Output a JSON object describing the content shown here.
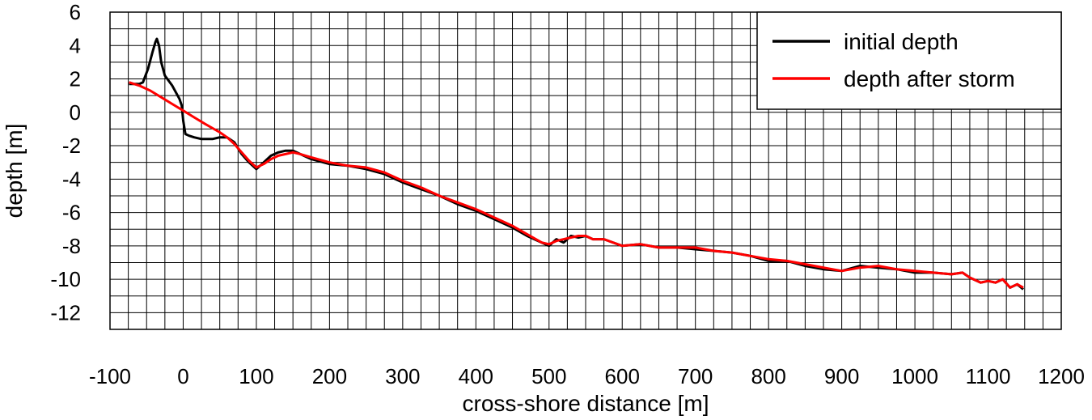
{
  "chart_data": {
    "type": "line",
    "title": "",
    "xlabel": "cross-shore distance [m]",
    "ylabel": "depth [m]",
    "xlim": [
      -100,
      1200
    ],
    "ylim": [
      -13,
      6
    ],
    "x_ticks": [
      -100,
      0,
      100,
      200,
      300,
      400,
      500,
      600,
      700,
      800,
      900,
      1000,
      1100,
      1200
    ],
    "x_tick_labels": [
      "-100",
      "0",
      "100",
      "200",
      "300",
      "400",
      "500",
      "600",
      "700",
      "800",
      "900",
      "1000",
      "1100",
      "1200"
    ],
    "y_ticks": [
      -12,
      -10,
      -8,
      -6,
      -4,
      -2,
      0,
      2,
      4,
      6
    ],
    "y_tick_labels": [
      "-12",
      "-10",
      "-8",
      "-6",
      "-4",
      "-2",
      "0",
      "2",
      "4",
      "6"
    ],
    "grid": true,
    "grid_x_step": 25,
    "grid_y_step": 1,
    "legend_position": "top-right",
    "series": [
      {
        "name": "initial depth",
        "color": "#000000",
        "x": [
          -74,
          -60,
          -55,
          -48,
          -42,
          -38,
          -36,
          -33,
          -30,
          -25,
          -15,
          -5,
          -2,
          0,
          3,
          8,
          15,
          25,
          40,
          50,
          60,
          70,
          80,
          90,
          100,
          110,
          120,
          130,
          140,
          150,
          160,
          175,
          200,
          225,
          250,
          275,
          300,
          325,
          350,
          375,
          400,
          425,
          450,
          470,
          490,
          500,
          510,
          520,
          530,
          540,
          550,
          560,
          575,
          600,
          625,
          650,
          675,
          700,
          725,
          750,
          775,
          800,
          825,
          850,
          875,
          900,
          925,
          950,
          975,
          1000,
          1025,
          1050,
          1065,
          1075,
          1090,
          1100,
          1110,
          1120,
          1130,
          1140,
          1148
        ],
        "y": [
          1.7,
          1.7,
          1.8,
          2.6,
          3.6,
          4.2,
          4.4,
          4.0,
          3.0,
          2.2,
          1.6,
          0.8,
          0.4,
          -0.5,
          -1.3,
          -1.4,
          -1.5,
          -1.6,
          -1.6,
          -1.5,
          -1.5,
          -1.8,
          -2.5,
          -3.0,
          -3.4,
          -3.0,
          -2.6,
          -2.4,
          -2.3,
          -2.3,
          -2.5,
          -2.8,
          -3.1,
          -3.2,
          -3.4,
          -3.7,
          -4.2,
          -4.6,
          -5.0,
          -5.5,
          -5.9,
          -6.4,
          -6.9,
          -7.4,
          -7.8,
          -8.0,
          -7.6,
          -7.8,
          -7.4,
          -7.5,
          -7.4,
          -7.6,
          -7.6,
          -8.0,
          -7.9,
          -8.1,
          -8.1,
          -8.2,
          -8.3,
          -8.4,
          -8.6,
          -8.9,
          -8.9,
          -9.2,
          -9.4,
          -9.5,
          -9.2,
          -9.3,
          -9.4,
          -9.6,
          -9.6,
          -9.7,
          -9.6,
          -9.9,
          -10.2,
          -10.1,
          -10.2,
          -10.0,
          -10.5,
          -10.3,
          -10.6
        ]
      },
      {
        "name": "depth after storm",
        "color": "#ff0000",
        "x": [
          -74,
          -60,
          -45,
          -30,
          -15,
          0,
          15,
          30,
          50,
          60,
          70,
          80,
          90,
          100,
          110,
          120,
          130,
          140,
          150,
          160,
          175,
          200,
          225,
          250,
          275,
          300,
          325,
          350,
          375,
          400,
          425,
          450,
          470,
          490,
          500,
          510,
          520,
          530,
          540,
          550,
          560,
          575,
          600,
          625,
          650,
          675,
          700,
          725,
          750,
          775,
          800,
          825,
          850,
          875,
          900,
          925,
          950,
          975,
          1000,
          1025,
          1050,
          1065,
          1075,
          1090,
          1100,
          1110,
          1120,
          1130,
          1140,
          1148
        ],
        "y": [
          1.8,
          1.6,
          1.3,
          0.9,
          0.5,
          0.1,
          -0.3,
          -0.7,
          -1.2,
          -1.5,
          -1.9,
          -2.4,
          -2.9,
          -3.3,
          -3.1,
          -2.8,
          -2.6,
          -2.5,
          -2.4,
          -2.5,
          -2.7,
          -3.0,
          -3.2,
          -3.3,
          -3.6,
          -4.1,
          -4.5,
          -5.0,
          -5.4,
          -5.8,
          -6.3,
          -6.8,
          -7.3,
          -7.8,
          -7.9,
          -7.7,
          -7.6,
          -7.5,
          -7.4,
          -7.4,
          -7.6,
          -7.6,
          -8.0,
          -7.9,
          -8.1,
          -8.1,
          -8.1,
          -8.3,
          -8.4,
          -8.6,
          -8.8,
          -8.9,
          -9.1,
          -9.3,
          -9.5,
          -9.3,
          -9.2,
          -9.4,
          -9.5,
          -9.6,
          -9.7,
          -9.6,
          -9.9,
          -10.2,
          -10.1,
          -10.2,
          -10.0,
          -10.5,
          -10.3,
          -10.5
        ]
      }
    ]
  }
}
